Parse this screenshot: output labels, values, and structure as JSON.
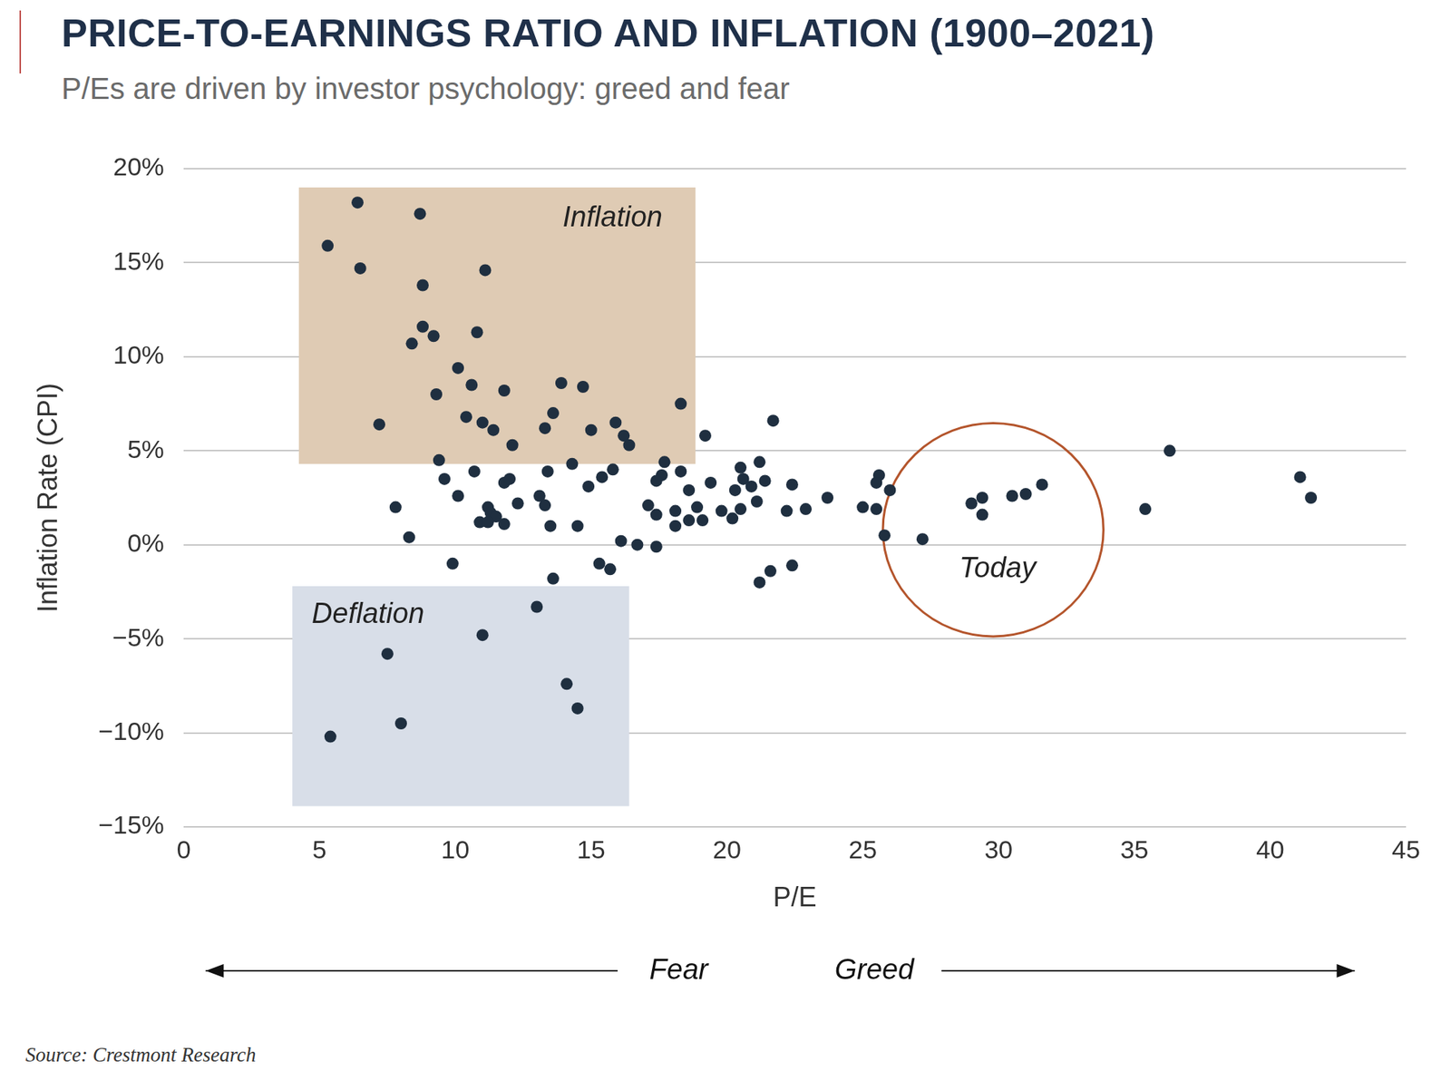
{
  "chart_data": {
    "type": "scatter",
    "title": "PRICE-TO-EARNINGS RATIO AND INFLATION (1900–2021)",
    "subtitle": "P/Es are driven by investor psychology: greed and fear",
    "x_label": "P/E",
    "y_label": "Inflation Rate (CPI)",
    "x": [
      5.3,
      6.4,
      6.5,
      8.7,
      8.8,
      8.8,
      9.2,
      8.4,
      11.1,
      10.8,
      7.2,
      10.1,
      10.6,
      9.3,
      11.8,
      13.9,
      14.7,
      13.6,
      13.3,
      10.4,
      11.0,
      11.4,
      12.1,
      15.0,
      15.9,
      16.2,
      16.4,
      18.3,
      19.2,
      21.7,
      9.4,
      9.6,
      10.1,
      10.7,
      11.8,
      12.0,
      11.2,
      11.3,
      11.5,
      10.9,
      11.2,
      11.8,
      12.3,
      13.1,
      13.3,
      13.4,
      13.5,
      14.3,
      14.9,
      15.4,
      15.8,
      14.5,
      7.8,
      8.3,
      9.9,
      16.1,
      16.7,
      17.4,
      17.6,
      17.7,
      17.4,
      18.3,
      17.1,
      17.4,
      18.1,
      18.1,
      18.6,
      18.6,
      18.9,
      19.1,
      19.4,
      19.8,
      20.2,
      20.3,
      20.5,
      20.6,
      20.5,
      20.9,
      21.2,
      21.4,
      21.1,
      22.4,
      22.2,
      22.9,
      23.7,
      25.0,
      25.5,
      25.6,
      25.5,
      26.0,
      25.8,
      27.2,
      29.0,
      29.4,
      29.4,
      30.5,
      31.0,
      31.6,
      35.4,
      36.3,
      41.1,
      41.5,
      13.6,
      15.3,
      15.7,
      21.2,
      21.6,
      22.4,
      13.0,
      11.0,
      7.5,
      14.1,
      14.5,
      8.0,
      5.4
    ],
    "values": [
      15.9,
      18.2,
      14.7,
      17.6,
      13.8,
      11.6,
      11.1,
      10.7,
      14.6,
      11.3,
      6.4,
      9.4,
      8.5,
      8.0,
      8.2,
      8.6,
      8.4,
      7.0,
      6.2,
      6.8,
      6.5,
      6.1,
      5.3,
      6.1,
      6.5,
      5.8,
      5.3,
      7.5,
      5.8,
      6.6,
      4.5,
      3.5,
      2.6,
      3.9,
      3.3,
      3.5,
      2.0,
      1.7,
      1.5,
      1.2,
      1.2,
      1.1,
      2.2,
      2.6,
      2.1,
      3.9,
      1.0,
      4.3,
      3.1,
      3.6,
      4.0,
      1.0,
      2.0,
      0.4,
      -1.0,
      0.2,
      0.0,
      -0.1,
      3.7,
      4.4,
      3.4,
      3.9,
      2.1,
      1.6,
      1.8,
      1.0,
      1.3,
      2.9,
      2.0,
      1.3,
      3.3,
      1.8,
      1.4,
      2.9,
      4.1,
      3.5,
      1.9,
      3.1,
      4.4,
      3.4,
      2.3,
      3.2,
      1.8,
      1.9,
      2.5,
      2.0,
      1.9,
      3.7,
      3.3,
      2.9,
      0.5,
      0.3,
      2.2,
      2.5,
      1.6,
      2.6,
      2.7,
      3.2,
      1.9,
      5.0,
      3.6,
      2.5,
      -1.8,
      -1.0,
      -1.3,
      -2.0,
      -1.4,
      -1.1,
      -3.3,
      -4.8,
      -5.8,
      -7.4,
      -8.7,
      -9.5,
      -10.2
    ],
    "color": "#1f2f40",
    "marker": "circle",
    "xlim": [
      0,
      45
    ],
    "xticks": [
      0,
      5,
      10,
      15,
      20,
      25,
      30,
      35,
      40,
      45
    ],
    "ylim": [
      -15,
      20
    ],
    "yticks": [
      {
        "value": -15,
        "label": "−15%"
      },
      {
        "value": -10,
        "label": "−10%"
      },
      {
        "value": -5,
        "label": "−5%"
      },
      {
        "value": 0,
        "label": "0%"
      },
      {
        "value": 5,
        "label": "5%"
      },
      {
        "value": 10,
        "label": "10%"
      },
      {
        "value": 15,
        "label": "15%"
      },
      {
        "value": 20,
        "label": "20%"
      }
    ],
    "grid": "y",
    "legend": false,
    "regions": [
      {
        "label": "Inflation",
        "xlim": [
          4.24,
          18.84
        ],
        "ylim": [
          4.3,
          19.0
        ],
        "color": "#dfcbb4"
      },
      {
        "label": "Deflation",
        "xlim": [
          4.0,
          16.4
        ],
        "ylim": [
          -13.9,
          -2.2
        ],
        "color": "#d8dee8"
      }
    ],
    "circle": {
      "label": "Today",
      "center": [
        29.8,
        0.8
      ],
      "x_radius": 4.06,
      "y_radius": 5.67,
      "color": "#b4552c"
    },
    "direction_labels": {
      "left": "Fear",
      "right": "Greed"
    },
    "source": "Source: Crestmont Research"
  }
}
